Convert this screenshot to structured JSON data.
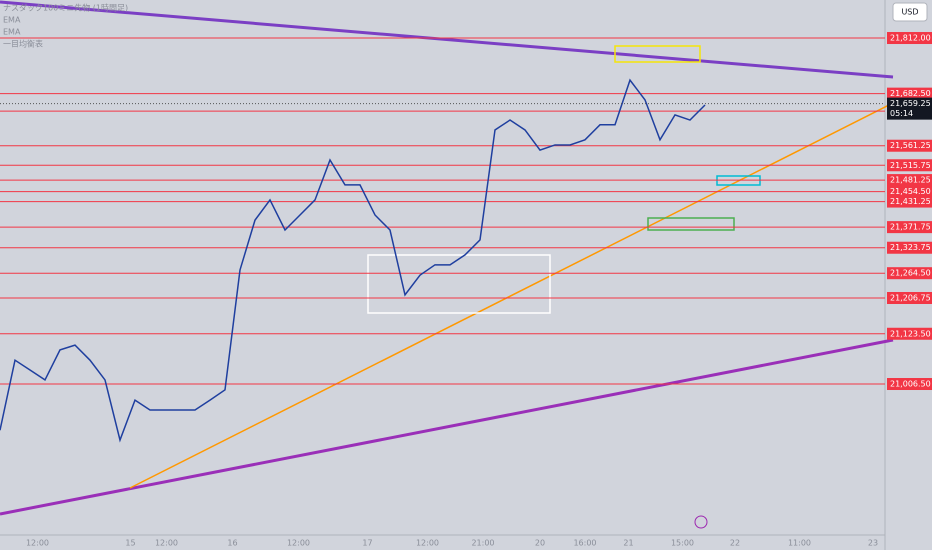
{
  "chart_data": {
    "type": "line",
    "title": "ナスダック100ミニ先物 (1時間足)",
    "legend_items": [
      "EMA",
      "EMA",
      "一目均衡表"
    ],
    "currency": "USD",
    "x": [
      0,
      1,
      2,
      3,
      4,
      5,
      6,
      7,
      8,
      9,
      10,
      11,
      12,
      13,
      14,
      15,
      16,
      17,
      18,
      19,
      20,
      21,
      22,
      23,
      24,
      25,
      26,
      27,
      28,
      29,
      30,
      31,
      32,
      33,
      34,
      35,
      36,
      37,
      38,
      39,
      40,
      41,
      42,
      43,
      44,
      45,
      46,
      47
    ],
    "xlim": [
      0,
      59
    ],
    "xticks": [
      {
        "value": 2.5,
        "label": "12:00"
      },
      {
        "value": 8.7,
        "label": "15"
      },
      {
        "value": 11.1,
        "label": "12:00"
      },
      {
        "value": 15.5,
        "label": "16"
      },
      {
        "value": 19.9,
        "label": "12:00"
      },
      {
        "value": 24.5,
        "label": "17"
      },
      {
        "value": 28.5,
        "label": "12:00"
      },
      {
        "value": 32.2,
        "label": "21:00"
      },
      {
        "value": 36,
        "label": "20"
      },
      {
        "value": 39,
        "label": "16:00"
      },
      {
        "value": 41.9,
        "label": "21"
      },
      {
        "value": 45.5,
        "label": "15:00"
      },
      {
        "value": 49,
        "label": "22"
      },
      {
        "value": 53.3,
        "label": "11:00"
      },
      {
        "value": 58.2,
        "label": "23"
      }
    ],
    "series": [
      {
        "name": "NQ",
        "color": "#1f3f9f",
        "values": [
          20899,
          21062,
          21039,
          21016,
          21086,
          21097,
          21062,
          21016,
          20876,
          20969,
          20946,
          20946,
          20946,
          20946,
          20969,
          20993,
          21272,
          21388,
          21435,
          21365,
          21400,
          21435,
          21528,
          21470,
          21470,
          21400,
          21365,
          21214,
          21260,
          21284,
          21284,
          21307,
          21342,
          21598,
          21621,
          21598,
          21551,
          21563,
          21563,
          21575,
          21610,
          21610,
          21714,
          21668,
          21575,
          21633,
          21621,
          21656
        ]
      }
    ],
    "ylim": [
      20655,
      21900.5
    ],
    "level_color": "#f23645",
    "yticks": [
      {
        "value": 21812,
        "label": "21,812.00"
      },
      {
        "value": 21682.5,
        "label": "21,682.50"
      },
      {
        "value": 21641.75,
        "label": "21,641.75"
      },
      {
        "value": 21561.25,
        "label": "21,561.25"
      },
      {
        "value": 21515.75,
        "label": "21,515.75"
      },
      {
        "value": 21481.25,
        "label": "21,481.25"
      },
      {
        "value": 21454.5,
        "label": "21,454.50"
      },
      {
        "value": 21431.25,
        "label": "21,431.25"
      },
      {
        "value": 21371.75,
        "label": "21,371.75"
      },
      {
        "value": 21323.75,
        "label": "21,323.75"
      },
      {
        "value": 21264.5,
        "label": "21,264.50"
      },
      {
        "value": 21206.75,
        "label": "21,206.75"
      },
      {
        "value": 21123.5,
        "label": "21,123.50"
      },
      {
        "value": 21006.5,
        "label": "21,006.50"
      }
    ],
    "last_price": {
      "value": 21659.25,
      "label": "21,659.25"
    },
    "countdown": "05:14"
  }
}
